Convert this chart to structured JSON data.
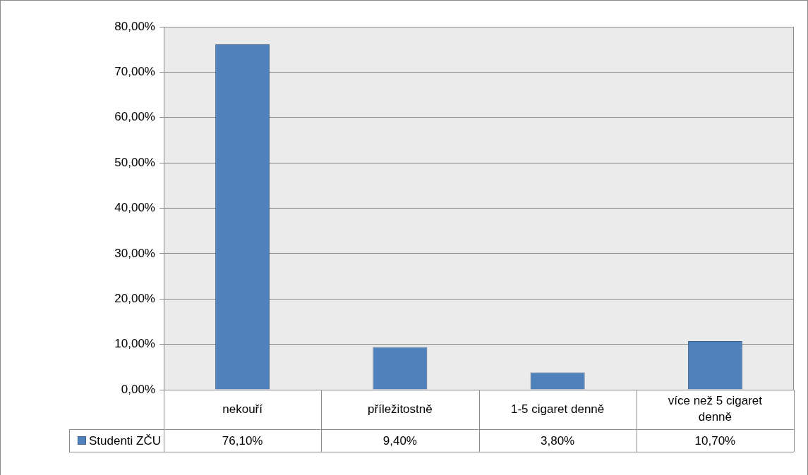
{
  "chart_data": {
    "type": "bar",
    "categories": [
      "nekouří",
      "příležitostně",
      "1-5 cigaret denně",
      "více než 5 cigaret denně"
    ],
    "series": [
      {
        "name": "Studenti ZČU",
        "color": "#4f81bd",
        "values": [
          76.1,
          9.4,
          3.8,
          10.7
        ],
        "value_labels": [
          "76,10%",
          "9,40%",
          "3,80%",
          "10,70%"
        ]
      }
    ],
    "ylim": [
      0,
      80
    ],
    "yticks": [
      {
        "value": 0,
        "label": "0,00%"
      },
      {
        "value": 10,
        "label": "10,00%"
      },
      {
        "value": 20,
        "label": "20,00%"
      },
      {
        "value": 30,
        "label": "30,00%"
      },
      {
        "value": 40,
        "label": "40,00%"
      },
      {
        "value": 50,
        "label": "50,00%"
      },
      {
        "value": 60,
        "label": "60,00%"
      },
      {
        "value": 70,
        "label": "70,00%"
      },
      {
        "value": 80,
        "label": "80,00%"
      }
    ],
    "grid": "y",
    "legend": "bottom left"
  }
}
